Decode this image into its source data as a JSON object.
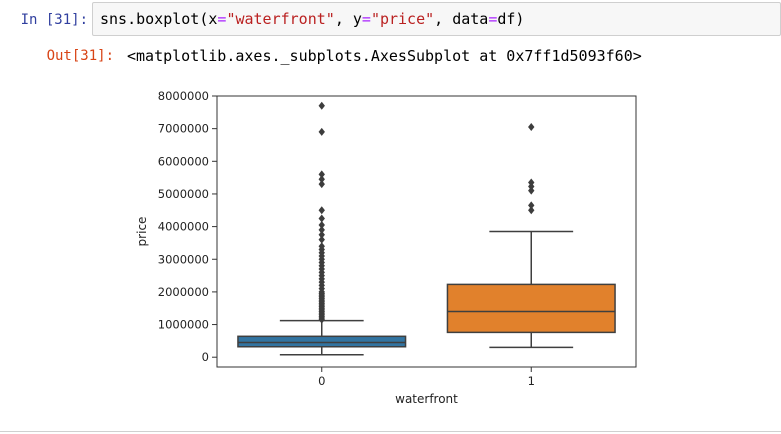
{
  "cell": {
    "in_prompt": "In [31]:",
    "code": {
      "fn": "sns.boxplot(x",
      "eq1": "=",
      "x_str": "\"waterfront\"",
      "sep1": ", y",
      "eq2": "=",
      "y_str": "\"price\"",
      "sep2": ", data",
      "eq3": "=",
      "tail": "df)"
    },
    "out_prompt": "Out[31]:",
    "out_text": "<matplotlib.axes._subplots.AxesSubplot at 0x7ff1d5093f60>"
  },
  "chart_data": {
    "type": "box",
    "title": "",
    "xlabel": "waterfront",
    "ylabel": "price",
    "ylim": [
      -300000,
      8000000
    ],
    "yticks": [
      0,
      1000000,
      2000000,
      3000000,
      4000000,
      5000000,
      6000000,
      7000000,
      8000000
    ],
    "ytick_labels": [
      "0",
      "1000000",
      "2000000",
      "3000000",
      "4000000",
      "5000000",
      "6000000",
      "7000000",
      "8000000"
    ],
    "categories": [
      "0",
      "1"
    ],
    "colors": [
      "#3274a1",
      "#e1812c"
    ],
    "boxes": [
      {
        "category": "0",
        "whisker_low": 75000,
        "q1": 320000,
        "median": 450000,
        "q3": 640000,
        "whisker_high": 1120000,
        "outliers": [
          1150000,
          1200000,
          1250000,
          1300000,
          1350000,
          1400000,
          1450000,
          1500000,
          1550000,
          1600000,
          1650000,
          1700000,
          1750000,
          1800000,
          1850000,
          1900000,
          1950000,
          2000000,
          2100000,
          2200000,
          2300000,
          2400000,
          2500000,
          2600000,
          2700000,
          2800000,
          2900000,
          3000000,
          3100000,
          3200000,
          3300000,
          3400000,
          3600000,
          3750000,
          3900000,
          4050000,
          4250000,
          4500000,
          5300000,
          5450000,
          5600000,
          6900000,
          7700000
        ]
      },
      {
        "category": "1",
        "whisker_low": 300000,
        "q1": 760000,
        "median": 1400000,
        "q3": 2230000,
        "whisker_high": 3850000,
        "outliers": [
          4500000,
          4650000,
          5100000,
          5230000,
          5350000,
          7050000
        ]
      }
    ]
  }
}
